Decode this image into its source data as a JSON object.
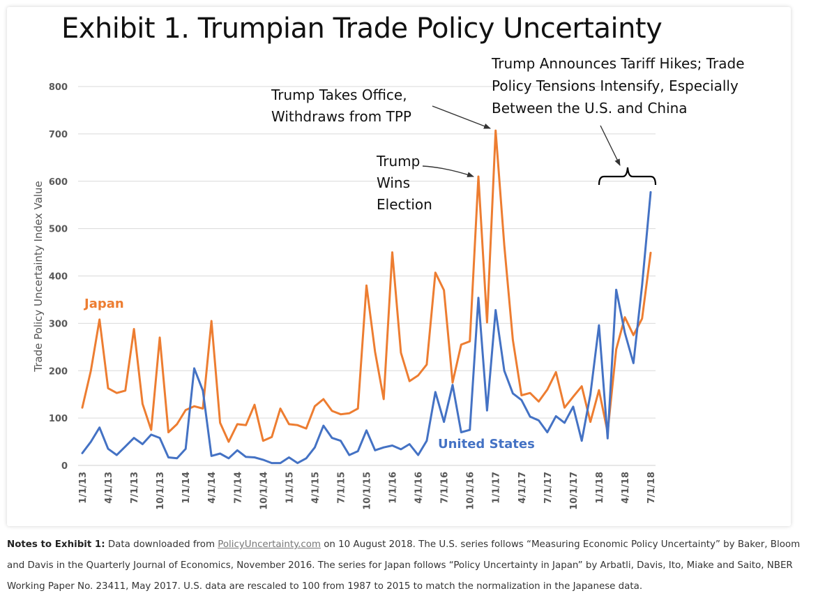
{
  "chart_data": {
    "type": "line",
    "title": "Exhibit 1. Trumpian Trade Policy Uncertainty",
    "ylabel": "Trade Policy Uncertainty Index Value",
    "xlabel": "",
    "ylim": [
      0,
      800
    ],
    "yticks": [
      "0",
      "100",
      "200",
      "300",
      "400",
      "500",
      "600",
      "700",
      "800"
    ],
    "ytick_values": [
      0,
      100,
      200,
      300,
      400,
      500,
      600,
      700,
      800
    ],
    "xtick_labels": [
      "1/1/13",
      "4/1/13",
      "7/1/13",
      "10/1/13",
      "1/1/14",
      "4/1/14",
      "7/1/14",
      "10/1/14",
      "1/1/15",
      "4/1/15",
      "7/1/15",
      "10/1/15",
      "1/1/16",
      "4/1/16",
      "7/1/16",
      "10/1/16",
      "1/1/17",
      "4/1/17",
      "7/1/17",
      "10/1/17",
      "1/1/18",
      "4/1/18",
      "7/1/18"
    ],
    "grid": true,
    "series": [
      {
        "name": "Japan",
        "label": "Japan",
        "color": "#ED7D31",
        "values": [
          122,
          200,
          308,
          163,
          153,
          158,
          288,
          130,
          75,
          270,
          70,
          87,
          117,
          125,
          120,
          305,
          90,
          50,
          87,
          85,
          128,
          52,
          60,
          120,
          87,
          85,
          78,
          125,
          140,
          115,
          108,
          110,
          120,
          380,
          240,
          140,
          450,
          238,
          178,
          190,
          213,
          407,
          370,
          175,
          255,
          262,
          610,
          302,
          707,
          465,
          265,
          148,
          153,
          135,
          160,
          197,
          122,
          145,
          167,
          92,
          159,
          70,
          245,
          313,
          275,
          310,
          449
        ]
      },
      {
        "name": "United States",
        "label": "United States",
        "color": "#4472C4",
        "values": [
          26,
          50,
          80,
          35,
          22,
          40,
          58,
          45,
          65,
          58,
          17,
          15,
          35,
          205,
          158,
          20,
          25,
          15,
          32,
          18,
          17,
          12,
          5,
          5,
          17,
          5,
          15,
          38,
          84,
          58,
          52,
          22,
          30,
          74,
          32,
          38,
          42,
          34,
          45,
          22,
          52,
          155,
          92,
          170,
          70,
          75,
          354,
          116,
          328,
          200,
          152,
          138,
          103,
          95,
          70,
          104,
          90,
          124,
          52,
          150,
          296,
          57,
          371,
          280,
          216,
          380,
          577
        ]
      }
    ],
    "annotations": {
      "election": [
        "Trump",
        "Wins",
        "Election"
      ],
      "office": [
        "Trump Takes Office,",
        "Withdraws from TPP"
      ],
      "tariffs": [
        "Trump Announces Tariff Hikes; Trade",
        "Policy Tensions Intensify, Especially",
        "Between the U.S. and China"
      ]
    }
  },
  "notes": {
    "label": "Notes to Exhibit 1:",
    "text_before_link": " Data downloaded from ",
    "link_text": "PolicyUncertainty.com",
    "text_after_link": " on 10 August 2018. The U.S. series follows “Measuring Economic Policy Uncertainty” by Baker, Bloom and Davis in the Quarterly Journal of Economics, November 2016. The series for Japan follows “Policy Uncertainty in Japan” by Arbatli, Davis, Ito, Miake and Saito, NBER Working Paper No. 23411, May 2017. U.S. data are rescaled to 100 from 1987 to 2015 to match the normalization in the Japanese data."
  }
}
